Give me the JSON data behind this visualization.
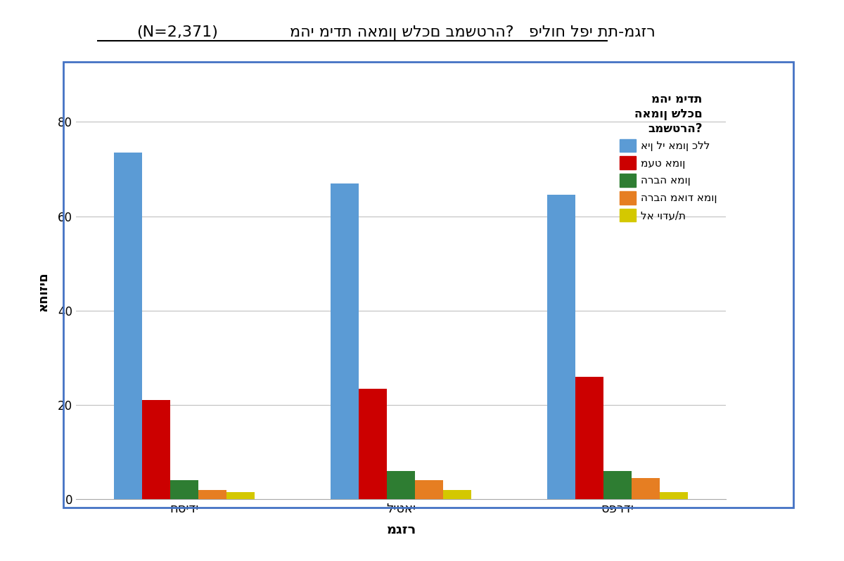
{
  "title_main": "מהי מידת האמון שלכם במשטרה?   פילוח לפי תת-מגזר",
  "title_n": "(N=2,371)",
  "xlabel": "מגזר",
  "ylabel": "אחוזים",
  "categories": [
    "חסידי",
    "ליטאי",
    "ספרדי"
  ],
  "legend_title_line1": "מהי מידת",
  "legend_title_line2": "האמון שלכם",
  "legend_title_line3": "במשטרה?",
  "series": [
    {
      "label": "אין לי אמון כלל",
      "color": "#5B9BD5",
      "values": [
        73.5,
        67.0,
        64.5
      ]
    },
    {
      "label": "מעט אמון",
      "color": "#CC0000",
      "values": [
        21.0,
        23.5,
        26.0
      ]
    },
    {
      "label": "הרבה אמון",
      "color": "#2E7D32",
      "values": [
        4.0,
        6.0,
        6.0
      ]
    },
    {
      "label": "הרבה מאוד אמון",
      "color": "#E67E22",
      "values": [
        2.0,
        4.0,
        4.5
      ]
    },
    {
      "label": "לא יודע/ת",
      "color": "#D4C800",
      "values": [
        1.5,
        2.0,
        1.5
      ]
    }
  ],
  "ylim": [
    0,
    88
  ],
  "yticks": [
    0,
    20,
    40,
    60,
    80
  ],
  "background_color": "#FFFFFF",
  "border_color": "#4472C4",
  "grid_color": "#C0C0C0",
  "bar_width": 0.13
}
